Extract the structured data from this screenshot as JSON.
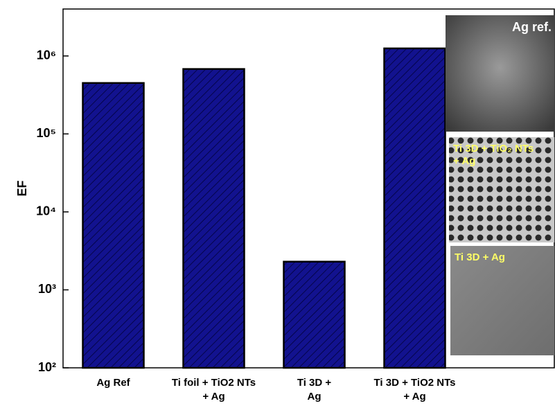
{
  "chart_data": {
    "type": "bar",
    "y_label": "EF",
    "categories": [
      "Ag Ref",
      "Ti foil + TiO2 NTs\n+ Ag",
      "Ti 3D +\nAg",
      "Ti 3D + TiO2 NTs\n+ Ag"
    ],
    "values": [
      450000,
      680000,
      2300,
      1250000
    ],
    "color": "#12128f",
    "log_scale": true,
    "ylim": [
      100,
      4000000
    ],
    "yticks": [
      {
        "value": 100,
        "label": "10²"
      },
      {
        "value": 1000,
        "label": "10³"
      },
      {
        "value": 10000,
        "label": "10⁴"
      },
      {
        "value": 100000,
        "label": "10⁵"
      },
      {
        "value": 1000000,
        "label": "10⁶"
      }
    ],
    "insets": [
      {
        "label": "Ag ref."
      },
      {
        "label": "Ti 3D + TiO₂ NTs\n+ Ag"
      },
      {
        "label": "Ti 3D + Ag"
      }
    ]
  }
}
